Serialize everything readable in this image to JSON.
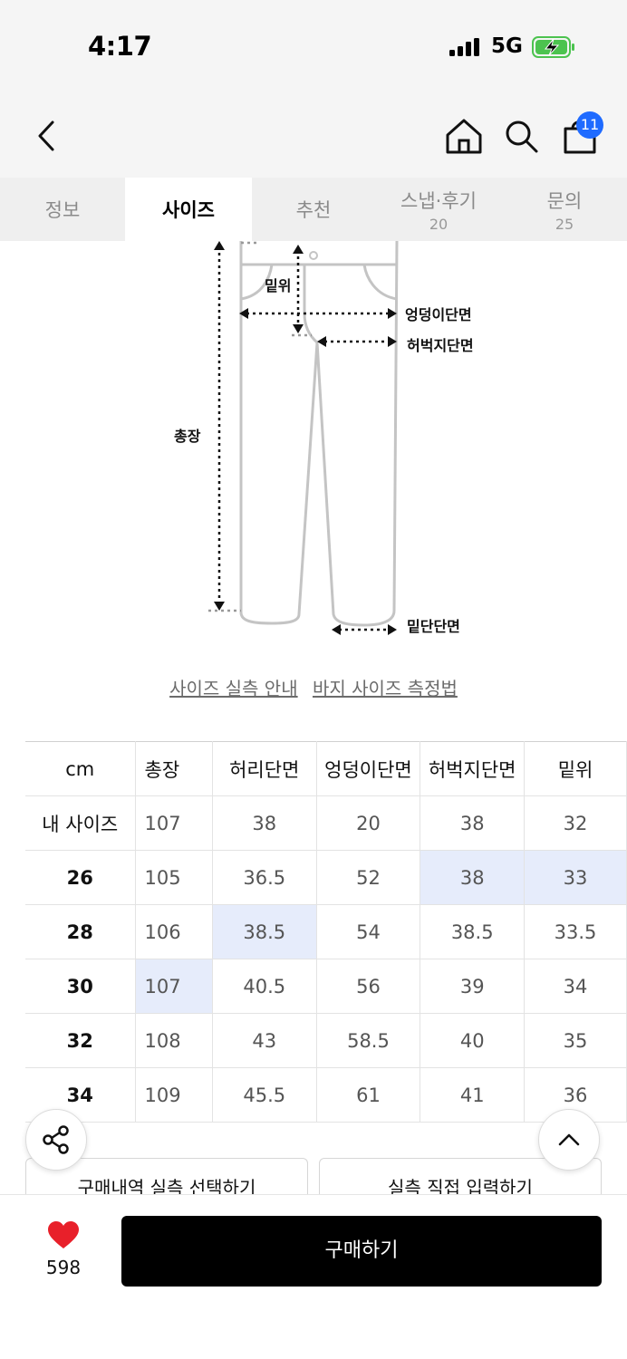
{
  "status": {
    "time": "4:17",
    "network": "5G"
  },
  "nav": {
    "cart_count": "11"
  },
  "tabs": [
    {
      "label": "정보",
      "count": ""
    },
    {
      "label": "사이즈",
      "count": ""
    },
    {
      "label": "추천",
      "count": ""
    },
    {
      "label": "스냅·후기",
      "count": "20"
    },
    {
      "label": "문의",
      "count": "25"
    }
  ],
  "active_tab": "사이즈",
  "diagram": {
    "labels": {
      "rise": "밑위",
      "hip": "엉덩이단면",
      "thigh": "허벅지단면",
      "length": "총장",
      "hem": "밑단단면"
    }
  },
  "links": {
    "guide": "사이즈 실측 안내",
    "howto": "바지 사이즈 측정법"
  },
  "table": {
    "headers": [
      "cm",
      "총장",
      "허리단면",
      "엉덩이단면",
      "허벅지단면",
      "밑위"
    ],
    "rows": [
      [
        "내 사이즈",
        "107",
        "38",
        "20",
        "38",
        "32"
      ],
      [
        "26",
        "105",
        "36.5",
        "52",
        "38",
        "33"
      ],
      [
        "28",
        "106",
        "38.5",
        "54",
        "38.5",
        "33.5"
      ],
      [
        "30",
        "107",
        "40.5",
        "56",
        "39",
        "34"
      ],
      [
        "32",
        "108",
        "43",
        "58.5",
        "40",
        "35"
      ],
      [
        "34",
        "109",
        "45.5",
        "61",
        "41",
        "36"
      ]
    ]
  },
  "actions": {
    "history": "구매내역 실측 선택하기",
    "manual": "실측 직접 입력하기"
  },
  "bottom": {
    "like_count": "598",
    "buy_label": "구매하기"
  },
  "colors": {
    "accent_badge": "#1f6bff",
    "highlight": "#e6ecfb",
    "like": "#e8202a",
    "buy": "#000000"
  }
}
